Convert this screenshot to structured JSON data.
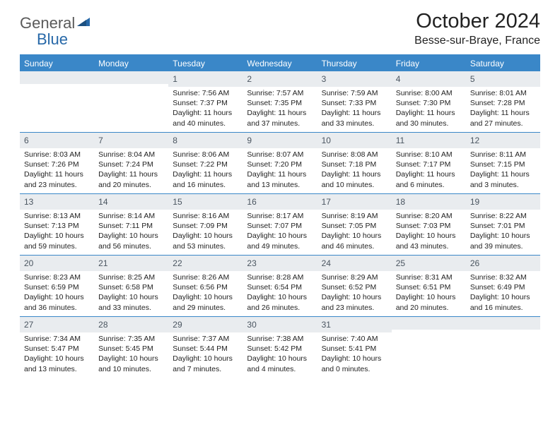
{
  "brand": {
    "name1": "General",
    "name2": "Blue"
  },
  "title": "October 2024",
  "location": "Besse-sur-Braye, France",
  "colors": {
    "header_bg": "#3a87c8",
    "daynum_bg": "#e9ecef",
    "text": "#222222",
    "logo_gray": "#5a5a5a",
    "logo_blue": "#2768a8"
  },
  "dayNames": [
    "Sunday",
    "Monday",
    "Tuesday",
    "Wednesday",
    "Thursday",
    "Friday",
    "Saturday"
  ],
  "weeks": [
    [
      {
        "day": "",
        "sunrise": "",
        "sunset": "",
        "daylight": ""
      },
      {
        "day": "",
        "sunrise": "",
        "sunset": "",
        "daylight": ""
      },
      {
        "day": "1",
        "sunrise": "Sunrise: 7:56 AM",
        "sunset": "Sunset: 7:37 PM",
        "daylight": "Daylight: 11 hours and 40 minutes."
      },
      {
        "day": "2",
        "sunrise": "Sunrise: 7:57 AM",
        "sunset": "Sunset: 7:35 PM",
        "daylight": "Daylight: 11 hours and 37 minutes."
      },
      {
        "day": "3",
        "sunrise": "Sunrise: 7:59 AM",
        "sunset": "Sunset: 7:33 PM",
        "daylight": "Daylight: 11 hours and 33 minutes."
      },
      {
        "day": "4",
        "sunrise": "Sunrise: 8:00 AM",
        "sunset": "Sunset: 7:30 PM",
        "daylight": "Daylight: 11 hours and 30 minutes."
      },
      {
        "day": "5",
        "sunrise": "Sunrise: 8:01 AM",
        "sunset": "Sunset: 7:28 PM",
        "daylight": "Daylight: 11 hours and 27 minutes."
      }
    ],
    [
      {
        "day": "6",
        "sunrise": "Sunrise: 8:03 AM",
        "sunset": "Sunset: 7:26 PM",
        "daylight": "Daylight: 11 hours and 23 minutes."
      },
      {
        "day": "7",
        "sunrise": "Sunrise: 8:04 AM",
        "sunset": "Sunset: 7:24 PM",
        "daylight": "Daylight: 11 hours and 20 minutes."
      },
      {
        "day": "8",
        "sunrise": "Sunrise: 8:06 AM",
        "sunset": "Sunset: 7:22 PM",
        "daylight": "Daylight: 11 hours and 16 minutes."
      },
      {
        "day": "9",
        "sunrise": "Sunrise: 8:07 AM",
        "sunset": "Sunset: 7:20 PM",
        "daylight": "Daylight: 11 hours and 13 minutes."
      },
      {
        "day": "10",
        "sunrise": "Sunrise: 8:08 AM",
        "sunset": "Sunset: 7:18 PM",
        "daylight": "Daylight: 11 hours and 10 minutes."
      },
      {
        "day": "11",
        "sunrise": "Sunrise: 8:10 AM",
        "sunset": "Sunset: 7:17 PM",
        "daylight": "Daylight: 11 hours and 6 minutes."
      },
      {
        "day": "12",
        "sunrise": "Sunrise: 8:11 AM",
        "sunset": "Sunset: 7:15 PM",
        "daylight": "Daylight: 11 hours and 3 minutes."
      }
    ],
    [
      {
        "day": "13",
        "sunrise": "Sunrise: 8:13 AM",
        "sunset": "Sunset: 7:13 PM",
        "daylight": "Daylight: 10 hours and 59 minutes."
      },
      {
        "day": "14",
        "sunrise": "Sunrise: 8:14 AM",
        "sunset": "Sunset: 7:11 PM",
        "daylight": "Daylight: 10 hours and 56 minutes."
      },
      {
        "day": "15",
        "sunrise": "Sunrise: 8:16 AM",
        "sunset": "Sunset: 7:09 PM",
        "daylight": "Daylight: 10 hours and 53 minutes."
      },
      {
        "day": "16",
        "sunrise": "Sunrise: 8:17 AM",
        "sunset": "Sunset: 7:07 PM",
        "daylight": "Daylight: 10 hours and 49 minutes."
      },
      {
        "day": "17",
        "sunrise": "Sunrise: 8:19 AM",
        "sunset": "Sunset: 7:05 PM",
        "daylight": "Daylight: 10 hours and 46 minutes."
      },
      {
        "day": "18",
        "sunrise": "Sunrise: 8:20 AM",
        "sunset": "Sunset: 7:03 PM",
        "daylight": "Daylight: 10 hours and 43 minutes."
      },
      {
        "day": "19",
        "sunrise": "Sunrise: 8:22 AM",
        "sunset": "Sunset: 7:01 PM",
        "daylight": "Daylight: 10 hours and 39 minutes."
      }
    ],
    [
      {
        "day": "20",
        "sunrise": "Sunrise: 8:23 AM",
        "sunset": "Sunset: 6:59 PM",
        "daylight": "Daylight: 10 hours and 36 minutes."
      },
      {
        "day": "21",
        "sunrise": "Sunrise: 8:25 AM",
        "sunset": "Sunset: 6:58 PM",
        "daylight": "Daylight: 10 hours and 33 minutes."
      },
      {
        "day": "22",
        "sunrise": "Sunrise: 8:26 AM",
        "sunset": "Sunset: 6:56 PM",
        "daylight": "Daylight: 10 hours and 29 minutes."
      },
      {
        "day": "23",
        "sunrise": "Sunrise: 8:28 AM",
        "sunset": "Sunset: 6:54 PM",
        "daylight": "Daylight: 10 hours and 26 minutes."
      },
      {
        "day": "24",
        "sunrise": "Sunrise: 8:29 AM",
        "sunset": "Sunset: 6:52 PM",
        "daylight": "Daylight: 10 hours and 23 minutes."
      },
      {
        "day": "25",
        "sunrise": "Sunrise: 8:31 AM",
        "sunset": "Sunset: 6:51 PM",
        "daylight": "Daylight: 10 hours and 20 minutes."
      },
      {
        "day": "26",
        "sunrise": "Sunrise: 8:32 AM",
        "sunset": "Sunset: 6:49 PM",
        "daylight": "Daylight: 10 hours and 16 minutes."
      }
    ],
    [
      {
        "day": "27",
        "sunrise": "Sunrise: 7:34 AM",
        "sunset": "Sunset: 5:47 PM",
        "daylight": "Daylight: 10 hours and 13 minutes."
      },
      {
        "day": "28",
        "sunrise": "Sunrise: 7:35 AM",
        "sunset": "Sunset: 5:45 PM",
        "daylight": "Daylight: 10 hours and 10 minutes."
      },
      {
        "day": "29",
        "sunrise": "Sunrise: 7:37 AM",
        "sunset": "Sunset: 5:44 PM",
        "daylight": "Daylight: 10 hours and 7 minutes."
      },
      {
        "day": "30",
        "sunrise": "Sunrise: 7:38 AM",
        "sunset": "Sunset: 5:42 PM",
        "daylight": "Daylight: 10 hours and 4 minutes."
      },
      {
        "day": "31",
        "sunrise": "Sunrise: 7:40 AM",
        "sunset": "Sunset: 5:41 PM",
        "daylight": "Daylight: 10 hours and 0 minutes."
      },
      {
        "day": "",
        "sunrise": "",
        "sunset": "",
        "daylight": ""
      },
      {
        "day": "",
        "sunrise": "",
        "sunset": "",
        "daylight": ""
      }
    ]
  ]
}
